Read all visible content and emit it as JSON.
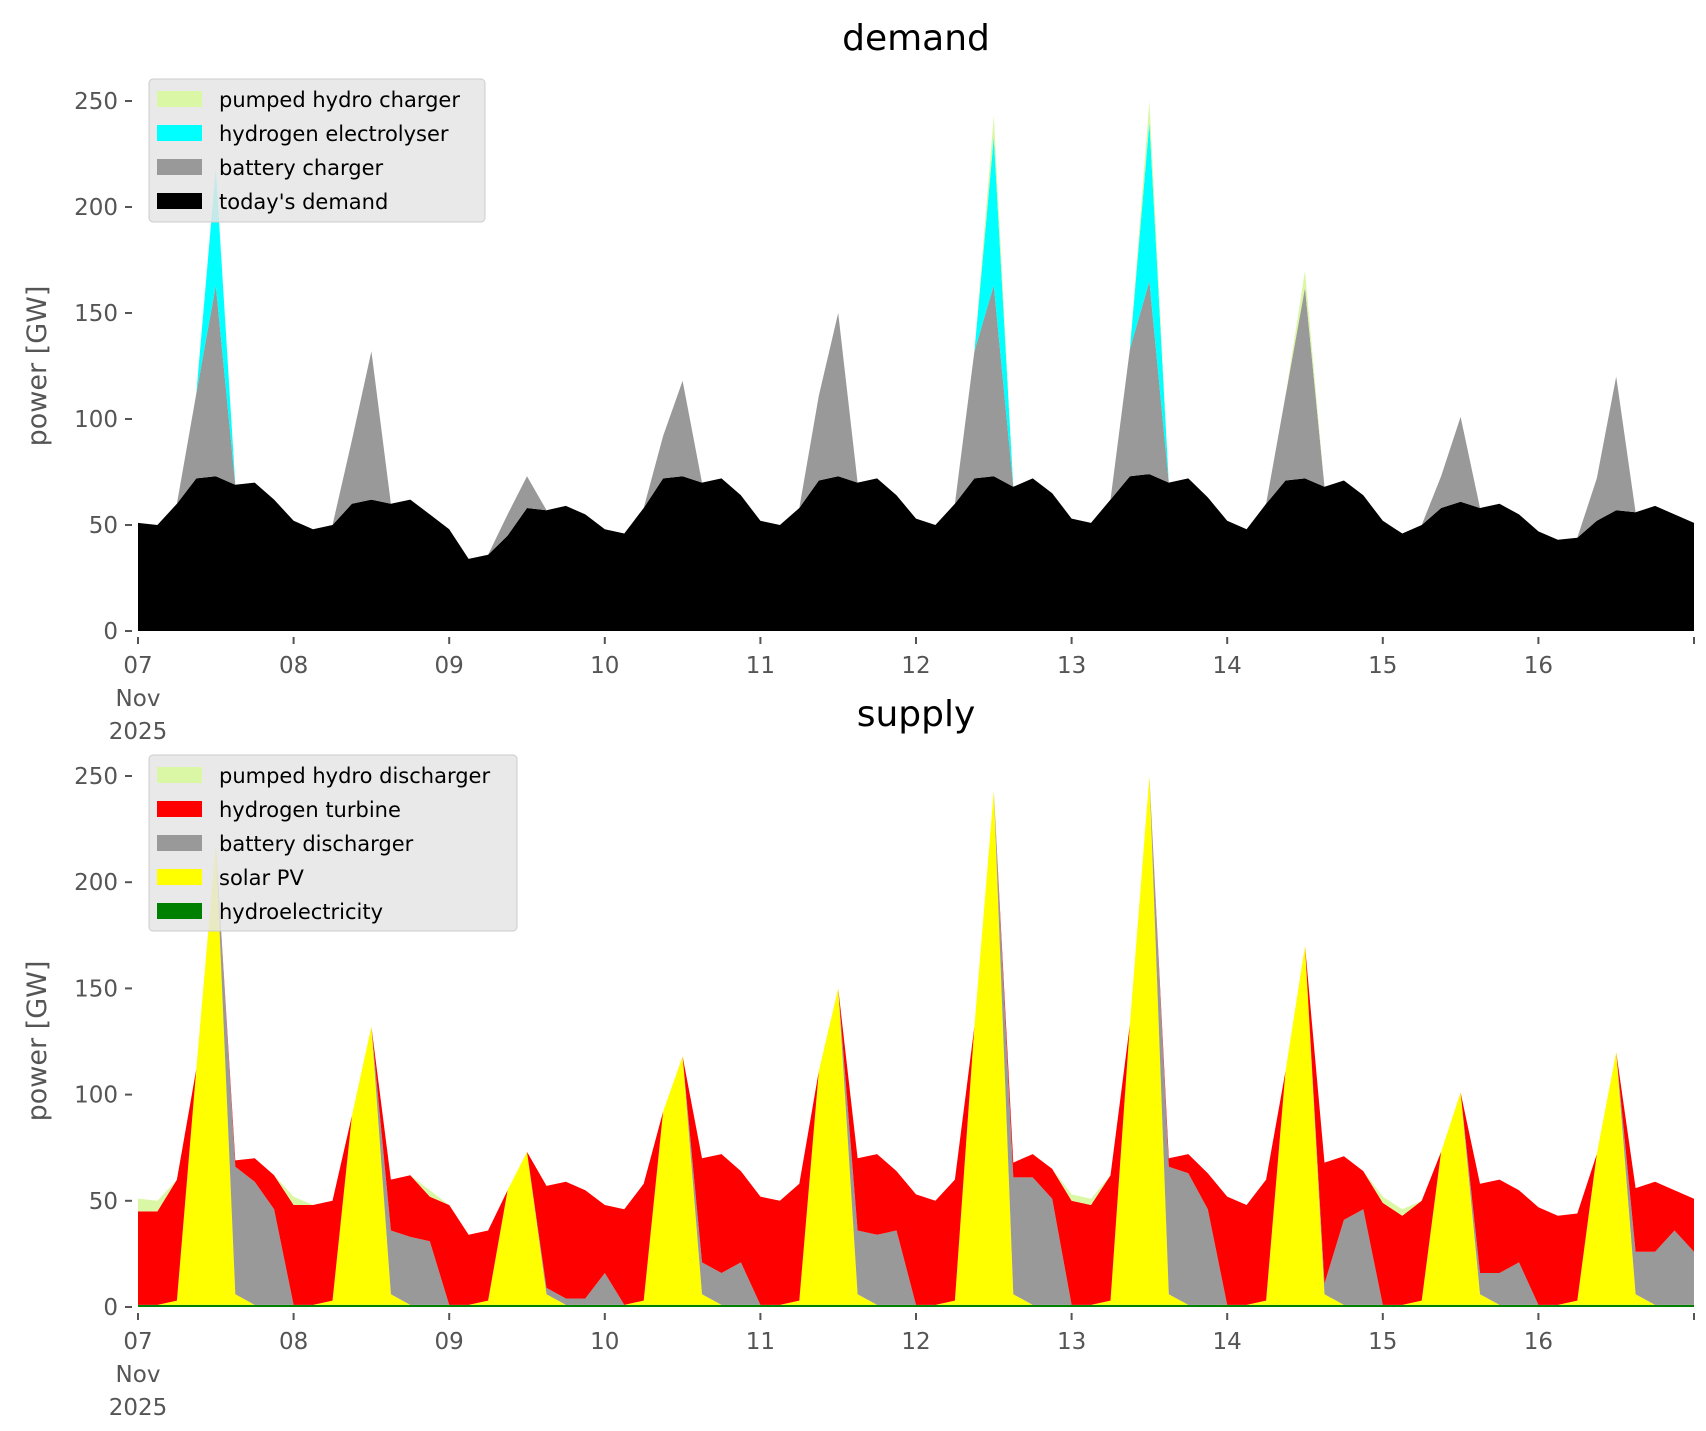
{
  "chart_data": [
    {
      "type": "area",
      "stacked": true,
      "title": "demand",
      "xlabel": "",
      "ylabel": "power [GW]",
      "ylim": [
        0,
        265
      ],
      "yticks": [
        0,
        50,
        100,
        150,
        200,
        250
      ],
      "xlim_days": [
        0,
        10
      ],
      "xticks": [
        {
          "day": 0,
          "label": [
            "07",
            "Nov",
            "2025"
          ]
        },
        {
          "day": 1,
          "label": [
            "08"
          ]
        },
        {
          "day": 2,
          "label": [
            "09"
          ]
        },
        {
          "day": 3,
          "label": [
            "10"
          ]
        },
        {
          "day": 4,
          "label": [
            "11"
          ]
        },
        {
          "day": 5,
          "label": [
            "12"
          ]
        },
        {
          "day": 6,
          "label": [
            "13"
          ]
        },
        {
          "day": 7,
          "label": [
            "14"
          ]
        },
        {
          "day": 8,
          "label": [
            "15"
          ]
        },
        {
          "day": 9,
          "label": [
            "16"
          ]
        },
        {
          "day": 10,
          "label": [
            ""
          ]
        }
      ],
      "grid": false,
      "legend_position": "top-left",
      "x_resolution_hours": 3,
      "x_start": "2025-11-07 00:00",
      "series": [
        {
          "name": "today's demand",
          "color": "#000000",
          "values": [
            51,
            50,
            60,
            72,
            73,
            69,
            70,
            62,
            52,
            48,
            50,
            60,
            62,
            60,
            62,
            55,
            48,
            34,
            36,
            45,
            58,
            57,
            59,
            55,
            48,
            46,
            58,
            72,
            73,
            70,
            72,
            64,
            52,
            50,
            58,
            71,
            73,
            70,
            72,
            64,
            53,
            50,
            60,
            72,
            73,
            68,
            72,
            65,
            53,
            51,
            62,
            73,
            74,
            70,
            72,
            63,
            52,
            48,
            60,
            71,
            72,
            68,
            71,
            64,
            52,
            46,
            50,
            58,
            61,
            58,
            60,
            55,
            47,
            43,
            44,
            52,
            57,
            56,
            59,
            55,
            51
          ]
        },
        {
          "name": "battery charger",
          "color": "#999999",
          "values": [
            0,
            0,
            0,
            40,
            90,
            0,
            0,
            0,
            0,
            0,
            0,
            30,
            70,
            0,
            0,
            0,
            0,
            0,
            0,
            10,
            15,
            0,
            0,
            0,
            0,
            0,
            0,
            20,
            45,
            0,
            0,
            0,
            0,
            0,
            0,
            40,
            77,
            0,
            0,
            0,
            0,
            0,
            0,
            60,
            90,
            0,
            0,
            0,
            0,
            0,
            0,
            60,
            91,
            0,
            0,
            0,
            0,
            0,
            0,
            40,
            90,
            0,
            0,
            0,
            0,
            0,
            0,
            15,
            40,
            0,
            0,
            0,
            0,
            0,
            0,
            20,
            63,
            0,
            0,
            0,
            0
          ]
        },
        {
          "name": "hydrogen electrolyser",
          "color": "#00ffff",
          "values": [
            0,
            0,
            0,
            0,
            55,
            0,
            0,
            0,
            0,
            0,
            0,
            0,
            0,
            0,
            0,
            0,
            0,
            0,
            0,
            0,
            0,
            0,
            0,
            0,
            0,
            0,
            0,
            0,
            0,
            0,
            0,
            0,
            0,
            0,
            0,
            0,
            0,
            0,
            0,
            0,
            0,
            0,
            0,
            0,
            70,
            0,
            0,
            0,
            0,
            0,
            0,
            0,
            75,
            0,
            0,
            0,
            0,
            0,
            0,
            0,
            0,
            0,
            0,
            0,
            0,
            0,
            0,
            0,
            0,
            0,
            0,
            0,
            0,
            0,
            0,
            0,
            0,
            0,
            0,
            0,
            0
          ]
        },
        {
          "name": "pumped hydro charger",
          "color": "#daf7a6",
          "values": [
            0,
            0,
            0,
            0,
            0,
            0,
            0,
            0,
            0,
            0,
            0,
            0,
            0,
            0,
            0,
            0,
            0,
            0,
            0,
            0,
            0,
            0,
            0,
            0,
            0,
            0,
            0,
            0,
            0,
            0,
            0,
            0,
            0,
            0,
            0,
            0,
            0,
            0,
            0,
            0,
            0,
            0,
            0,
            0,
            10,
            0,
            0,
            0,
            0,
            0,
            0,
            0,
            10,
            0,
            0,
            0,
            0,
            0,
            0,
            0,
            8,
            0,
            0,
            0,
            0,
            0,
            0,
            0,
            0,
            0,
            0,
            0,
            0,
            0,
            0,
            0,
            0,
            0,
            0,
            0,
            0
          ]
        }
      ],
      "legend": [
        "pumped hydro charger",
        "hydrogen electrolyser",
        "battery charger",
        "today's demand"
      ]
    },
    {
      "type": "area",
      "stacked": true,
      "title": "supply",
      "xlabel": "",
      "ylabel": "power [GW]",
      "ylim": [
        0,
        265
      ],
      "yticks": [
        0,
        50,
        100,
        150,
        200,
        250
      ],
      "xlim_days": [
        0,
        10
      ],
      "xticks": [
        {
          "day": 0,
          "label": [
            "07",
            "Nov",
            "2025"
          ]
        },
        {
          "day": 1,
          "label": [
            "08"
          ]
        },
        {
          "day": 2,
          "label": [
            "09"
          ]
        },
        {
          "day": 3,
          "label": [
            "10"
          ]
        },
        {
          "day": 4,
          "label": [
            "11"
          ]
        },
        {
          "day": 5,
          "label": [
            "12"
          ]
        },
        {
          "day": 6,
          "label": [
            "13"
          ]
        },
        {
          "day": 7,
          "label": [
            "14"
          ]
        },
        {
          "day": 8,
          "label": [
            "15"
          ]
        },
        {
          "day": 9,
          "label": [
            "16"
          ]
        },
        {
          "day": 10,
          "label": [
            ""
          ]
        }
      ],
      "grid": false,
      "legend_position": "top-left",
      "x_resolution_hours": 3,
      "x_start": "2025-11-07 00:00",
      "series": [
        {
          "name": "hydroelectricity",
          "color": "#008000",
          "values": [
            1,
            1,
            1,
            1,
            1,
            1,
            1,
            1,
            1,
            1,
            1,
            1,
            1,
            1,
            1,
            1,
            1,
            1,
            1,
            1,
            1,
            1,
            1,
            1,
            1,
            1,
            1,
            1,
            1,
            1,
            1,
            1,
            1,
            1,
            1,
            1,
            1,
            1,
            1,
            1,
            1,
            1,
            1,
            1,
            1,
            1,
            1,
            1,
            1,
            1,
            1,
            1,
            1,
            1,
            1,
            1,
            1,
            1,
            1,
            1,
            1,
            1,
            1,
            1,
            1,
            1,
            1,
            1,
            1,
            1,
            1,
            1,
            1,
            1,
            1,
            1,
            1,
            1,
            1,
            1,
            1
          ]
        },
        {
          "name": "solar PV",
          "color": "#ffff00",
          "values": [
            0,
            0,
            2,
            111,
            217,
            5,
            0,
            0,
            0,
            0,
            2,
            89,
            131,
            5,
            0,
            0,
            0,
            0,
            2,
            54,
            72,
            5,
            0,
            0,
            0,
            0,
            2,
            91,
            117,
            5,
            0,
            0,
            0,
            0,
            2,
            110,
            149,
            5,
            0,
            0,
            0,
            0,
            2,
            131,
            242,
            5,
            0,
            0,
            0,
            0,
            2,
            132,
            249,
            5,
            0,
            0,
            0,
            0,
            2,
            110,
            169,
            5,
            0,
            0,
            0,
            0,
            2,
            72,
            100,
            5,
            0,
            0,
            0,
            0,
            2,
            71,
            119,
            5,
            0,
            0,
            0
          ]
        },
        {
          "name": "battery discharger",
          "color": "#999999",
          "values": [
            0,
            0,
            0,
            0,
            0,
            60,
            58,
            45,
            0,
            0,
            0,
            0,
            0,
            30,
            32,
            30,
            0,
            0,
            0,
            0,
            0,
            3,
            3,
            3,
            15,
            0,
            0,
            0,
            0,
            15,
            15,
            20,
            0,
            0,
            0,
            0,
            0,
            30,
            33,
            35,
            0,
            0,
            0,
            0,
            0,
            55,
            60,
            50,
            0,
            0,
            0,
            0,
            0,
            60,
            62,
            45,
            0,
            0,
            0,
            0,
            0,
            5,
            40,
            45,
            0,
            0,
            0,
            0,
            0,
            10,
            15,
            20,
            0,
            0,
            0,
            0,
            0,
            20,
            25,
            35,
            25
          ]
        },
        {
          "name": "hydrogen turbine",
          "color": "#ff0000",
          "values": [
            44,
            44,
            57,
            0,
            0,
            3,
            11,
            16,
            47,
            47,
            47,
            0,
            0,
            24,
            29,
            21,
            47,
            33,
            33,
            0,
            0,
            48,
            55,
            51,
            32,
            45,
            55,
            0,
            0,
            49,
            56,
            43,
            51,
            49,
            55,
            0,
            0,
            34,
            38,
            28,
            52,
            49,
            57,
            0,
            0,
            7,
            11,
            14,
            49,
            47,
            59,
            0,
            0,
            4,
            9,
            17,
            51,
            47,
            57,
            0,
            0,
            57,
            30,
            18,
            48,
            42,
            47,
            0,
            0,
            42,
            44,
            34,
            46,
            42,
            41,
            0,
            0,
            30,
            33,
            19,
            25
          ]
        },
        {
          "name": "pumped hydro discharger",
          "color": "#daf7a6",
          "values": [
            6,
            5,
            0,
            0,
            0,
            0,
            0,
            0,
            4,
            0,
            0,
            0,
            0,
            0,
            0,
            3,
            0,
            0,
            0,
            0,
            0,
            0,
            0,
            0,
            0,
            0,
            0,
            0,
            0,
            0,
            0,
            0,
            0,
            0,
            0,
            0,
            0,
            0,
            0,
            0,
            0,
            0,
            0,
            0,
            0,
            0,
            0,
            0,
            3,
            3,
            0,
            0,
            0,
            0,
            0,
            0,
            0,
            0,
            0,
            0,
            0,
            0,
            0,
            0,
            3,
            3,
            0,
            0,
            0,
            0,
            0,
            0,
            0,
            0,
            0,
            0,
            0,
            0,
            0,
            0,
            0
          ]
        }
      ],
      "legend": [
        "pumped hydro discharger",
        "hydrogen turbine",
        "battery discharger",
        "solar PV",
        "hydroelectricity"
      ]
    }
  ]
}
